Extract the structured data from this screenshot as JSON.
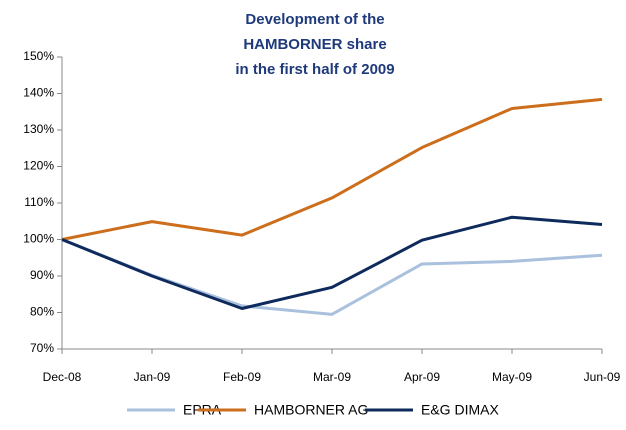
{
  "chart_data": {
    "type": "line",
    "title": [
      "Development of the",
      "HAMBORNER share",
      "in the first half of 2009"
    ],
    "categories": [
      "Dec-08",
      "Jan-09",
      "Feb-09",
      "Mar-09",
      "Apr-09",
      "May-09",
      "Jun-09"
    ],
    "series": [
      {
        "name": "EPRA",
        "color": "#a9c1dd",
        "values": [
          100,
          90.2,
          81.8,
          79.5,
          93.3,
          94.0,
          95.7
        ]
      },
      {
        "name": "HAMBORNER AG",
        "color": "#cc6e1c",
        "values": [
          100,
          104.9,
          101.2,
          111.4,
          125.2,
          135.9,
          138.4
        ]
      },
      {
        "name": "E&G DIMAX",
        "color": "#0f2a5c",
        "values": [
          100,
          90.0,
          81.1,
          86.9,
          99.8,
          106.1,
          104.1
        ]
      }
    ],
    "ylim": [
      70,
      150
    ],
    "yticks": [
      {
        "value": 70,
        "label": "70%"
      },
      {
        "value": 80,
        "label": "80%"
      },
      {
        "value": 90,
        "label": "90%"
      },
      {
        "value": 100,
        "label": "100%"
      },
      {
        "value": 110,
        "label": "110%"
      },
      {
        "value": 120,
        "label": "120%"
      },
      {
        "value": 130,
        "label": "130%"
      },
      {
        "value": 140,
        "label": "140%"
      },
      {
        "value": 150,
        "label": "150%"
      }
    ],
    "grid": false,
    "legend": "bottom"
  }
}
